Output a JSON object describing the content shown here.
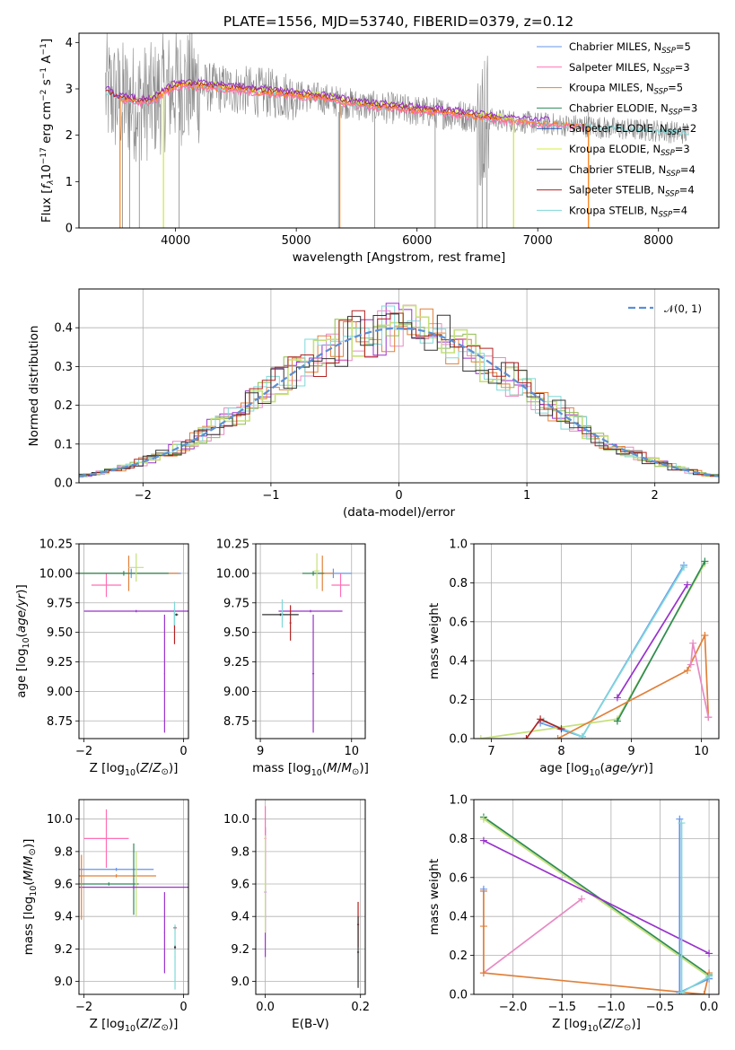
{
  "figure_title": "PLATE=1556, MJD=53740, FIBERID=0379, z=0.12",
  "colors": {
    "chabrier_miles": "#6495ed",
    "salpeter_miles": "#ff6eb4",
    "kroupa_miles": "#ff7f0e",
    "chabrier_elodie": "#2e8b57",
    "salpeter_elodie": "#1f4fb0",
    "kroupa_elodie": "#d4ef3c",
    "chabrier_stelib": "#333333",
    "salpeter_stelib": "#b22222",
    "kroupa_stelib": "#7fd8d8",
    "observed_spectrum": "#888888",
    "hist_purple": "#9932cc",
    "hist_pink": "#e78ac3",
    "hist_orange": "#e0803a",
    "hist_green": "#8fbc4f",
    "hist_lime": "#c5e07a",
    "gaussian": "#5b8fd6"
  },
  "chart_data": [
    {
      "id": "spectrum",
      "type": "line",
      "title": "PLATE=1556, MJD=53740, FIBERID=0379, z=0.12",
      "xlabel": "wavelength [Angstrom, rest frame]",
      "ylabel": "Flux [f_λ 10^-17 erg cm^-2 s^-1 A^-1]",
      "xlim": [
        3200,
        8500
      ],
      "ylim": [
        0,
        4.2
      ],
      "xticks": [
        "4000",
        "5000",
        "6000",
        "7000",
        "8000"
      ],
      "yticks": [
        "0",
        "1",
        "2",
        "3",
        "4"
      ],
      "grid": false,
      "legend_position": "right",
      "legend": [
        {
          "name": "Chabrier MILES",
          "nssp": "5",
          "color": "#6495ed"
        },
        {
          "name": "Salpeter MILES",
          "nssp": "3",
          "color": "#ff6eb4"
        },
        {
          "name": "Kroupa MILES",
          "nssp": "5",
          "color": "#ff7f0e"
        },
        {
          "name": "Chabrier ELODIE",
          "nssp": "3",
          "color": "#2e8b57"
        },
        {
          "name": "Salpeter ELODIE",
          "nssp": "2",
          "color": "#1f4fb0"
        },
        {
          "name": "Kroupa ELODIE",
          "nssp": "3",
          "color": "#d4ef3c"
        },
        {
          "name": "Chabrier STELIB",
          "nssp": "4",
          "color": "#333333"
        },
        {
          "name": "Salpeter STELIB",
          "nssp": "4",
          "color": "#b22222"
        },
        {
          "name": "Kroupa STELIB",
          "nssp": "4",
          "color": "#7fd8d8"
        }
      ],
      "continuum_x": [
        3420,
        3500,
        3600,
        3700,
        3800,
        3900,
        4000,
        4200,
        4400,
        4600,
        4800,
        5000,
        5200,
        5400,
        5600,
        5800,
        6000,
        6200,
        6400,
        6600,
        6800,
        7000,
        7200,
        7400,
        7600,
        7800,
        8000,
        8200
      ],
      "continuum_y": [
        2.95,
        2.8,
        2.75,
        2.7,
        2.72,
        2.9,
        3.05,
        3.05,
        3.0,
        2.95,
        2.9,
        2.85,
        2.8,
        2.7,
        2.62,
        2.58,
        2.52,
        2.48,
        2.42,
        2.35,
        2.3,
        2.26,
        2.22,
        2.2,
        2.15,
        2.12,
        2.1,
        2.05
      ]
    },
    {
      "id": "residuals",
      "type": "histogram",
      "xlabel": "(data-model)/error",
      "ylabel": "Normed distribution",
      "xlim": [
        -2.5,
        2.5
      ],
      "ylim": [
        0,
        0.5
      ],
      "xticks": [
        "−2",
        "−1",
        "0",
        "1",
        "2"
      ],
      "yticks": [
        "0.0",
        "0.1",
        "0.2",
        "0.3",
        "0.4"
      ],
      "grid": true,
      "legend_position": "upper right",
      "legend": "𝒩(0, 1)",
      "bin_width": 0.1
    },
    {
      "id": "age-vs-z",
      "type": "errorbar",
      "xlabel": "Z [log10(Z/Z⊙)]",
      "ylabel": "age [log10(age/yr)]",
      "xlim": [
        -2.1,
        0.1
      ],
      "ylim": [
        8.6,
        10.25
      ],
      "xticks": [
        "−2",
        "0"
      ],
      "yticks": [
        "8.75",
        "9.00",
        "9.25",
        "9.50",
        "9.75",
        "10.00",
        "10.25"
      ],
      "grid": true,
      "points": [
        {
          "x": -1.05,
          "xerr": 1.0,
          "y": 10.0,
          "yerr": 0.04,
          "color": "#6495ed"
        },
        {
          "x": -1.55,
          "xerr": 0.3,
          "y": 9.9,
          "yerr": 0.1,
          "color": "#ff6eb4"
        },
        {
          "x": -1.1,
          "xerr": 1.0,
          "y": 10.0,
          "yerr": 0.15,
          "color": "#e0803a"
        },
        {
          "x": -1.2,
          "xerr": 0.9,
          "y": 10.0,
          "yerr": 0.02,
          "color": "#2e8b57"
        },
        {
          "x": -0.95,
          "xerr": 0.15,
          "y": 10.05,
          "yerr": 0.12,
          "color": "#c5e07a"
        },
        {
          "x": -0.95,
          "xerr": 1.05,
          "y": 9.68,
          "yerr": 0.01,
          "color": "#9932cc"
        },
        {
          "x": -0.38,
          "xerr": 0.01,
          "y": 9.15,
          "yerr": 0.5,
          "color": "#9932cc"
        },
        {
          "x": -0.18,
          "xerr": 0.01,
          "y": 9.55,
          "yerr": 0.15,
          "color": "#b22222"
        },
        {
          "x": -0.14,
          "xerr": 0.03,
          "y": 9.65,
          "yerr": 0.01,
          "color": "#333333"
        },
        {
          "x": -0.18,
          "xerr": 0.01,
          "y": 9.66,
          "yerr": 0.1,
          "color": "#7fd8d8"
        }
      ]
    },
    {
      "id": "age-vs-mass",
      "type": "errorbar",
      "xlabel": "mass [log10(M/M⊙)]",
      "ylabel": "",
      "xlim": [
        8.95,
        10.15
      ],
      "ylim": [
        8.6,
        10.25
      ],
      "xticks": [
        "9",
        "10"
      ],
      "yticks": [
        "8.75",
        "9.00",
        "9.25",
        "9.50",
        "9.75",
        "10.00",
        "10.25"
      ],
      "grid": true,
      "points": [
        {
          "x": 9.8,
          "xerr": 0.2,
          "y": 10.0,
          "yerr": 0.04,
          "color": "#6495ed"
        },
        {
          "x": 9.88,
          "xerr": 0.1,
          "y": 9.9,
          "yerr": 0.1,
          "color": "#ff6eb4"
        },
        {
          "x": 9.68,
          "xerr": 0.12,
          "y": 10.0,
          "yerr": 0.15,
          "color": "#e0803a"
        },
        {
          "x": 9.58,
          "xerr": 0.12,
          "y": 10.0,
          "yerr": 0.02,
          "color": "#2e8b57"
        },
        {
          "x": 9.62,
          "xerr": 0.03,
          "y": 10.02,
          "yerr": 0.15,
          "color": "#c5e07a"
        },
        {
          "x": 9.55,
          "xerr": 0.35,
          "y": 9.68,
          "yerr": 0.01,
          "color": "#9932cc"
        },
        {
          "x": 9.58,
          "xerr": 0.01,
          "y": 9.15,
          "yerr": 0.5,
          "color": "#9932cc"
        },
        {
          "x": 9.33,
          "xerr": 0.01,
          "y": 9.58,
          "yerr": 0.15,
          "color": "#b22222"
        },
        {
          "x": 9.22,
          "xerr": 0.2,
          "y": 9.65,
          "yerr": 0.01,
          "color": "#333333"
        },
        {
          "x": 9.24,
          "xerr": 0.01,
          "y": 9.66,
          "yerr": 0.12,
          "color": "#7fd8d8"
        }
      ]
    },
    {
      "id": "weight-vs-age",
      "type": "line",
      "xlabel": "age [log10(age/yr)]",
      "ylabel": "mass weight",
      "xlim": [
        6.75,
        10.25
      ],
      "ylim": [
        0,
        1.0
      ],
      "xticks": [
        "7",
        "8",
        "9",
        "10"
      ],
      "yticks": [
        "0.0",
        "0.2",
        "0.4",
        "0.6",
        "0.8",
        "1.0"
      ],
      "grid": true,
      "series": [
        {
          "color": "#6495ed",
          "x": [
            7.7,
            8.3,
            9.75
          ],
          "y": [
            0.08,
            0.01,
            0.89
          ]
        },
        {
          "color": "#7fd8d8",
          "x": [
            7.75,
            8.3,
            9.75
          ],
          "y": [
            0.09,
            0.01,
            0.88
          ]
        },
        {
          "color": "#9932cc",
          "x": [
            8.8,
            9.8
          ],
          "y": [
            0.21,
            0.79
          ]
        },
        {
          "color": "#c5e07a",
          "x": [
            6.85,
            8.8,
            10.05
          ],
          "y": [
            0.0,
            0.1,
            0.9
          ]
        },
        {
          "color": "#2e8b57",
          "x": [
            8.8,
            10.05
          ],
          "y": [
            0.09,
            0.91
          ]
        },
        {
          "color": "#e0803a",
          "x": [
            7.95,
            9.8,
            10.05,
            10.1
          ],
          "y": [
            0.0,
            0.35,
            0.53,
            0.11
          ]
        },
        {
          "color": "#e78ac3",
          "x": [
            9.85,
            9.88,
            10.1
          ],
          "y": [
            0.38,
            0.49,
            0.11
          ]
        },
        {
          "color": "#b22222",
          "x": [
            7.5,
            7.7,
            8.0
          ],
          "y": [
            0.0,
            0.1,
            0.05
          ]
        }
      ]
    },
    {
      "id": "mass-vs-z",
      "type": "errorbar",
      "xlabel": "Z [log10(Z/Z⊙)]",
      "ylabel": "mass [log10(M/M⊙)]",
      "xlim": [
        -2.1,
        0.1
      ],
      "ylim": [
        8.92,
        10.12
      ],
      "xticks": [
        "−2",
        "0"
      ],
      "yticks": [
        "9.0",
        "9.2",
        "9.4",
        "9.6",
        "9.8",
        "10.0"
      ],
      "grid": true,
      "points": [
        {
          "x": -1.55,
          "xerr": 0.45,
          "y": 9.88,
          "yerr": 0.18,
          "color": "#ff6eb4"
        },
        {
          "x": -1.35,
          "xerr": 0.75,
          "y": 9.69,
          "yerr": 0.01,
          "color": "#6495ed"
        },
        {
          "x": -1.35,
          "xerr": 0.8,
          "y": 9.65,
          "yerr": 0.01,
          "color": "#e0803a"
        },
        {
          "x": -1.5,
          "xerr": 0.6,
          "y": 9.6,
          "yerr": 0.01,
          "color": "#2e8b57"
        },
        {
          "x": -1.0,
          "xerr": 0.01,
          "y": 9.63,
          "yerr": 0.22,
          "color": "#2e8b57"
        },
        {
          "x": -0.95,
          "xerr": 0.01,
          "y": 9.6,
          "yerr": 0.2,
          "color": "#c5e07a"
        },
        {
          "x": -1.0,
          "xerr": 1.1,
          "y": 9.58,
          "yerr": 0.01,
          "color": "#9932cc"
        },
        {
          "x": -0.38,
          "xerr": 0.01,
          "y": 9.3,
          "yerr": 0.25,
          "color": "#9932cc"
        },
        {
          "x": -2.05,
          "xerr": 0.01,
          "y": 9.58,
          "yerr": 0.2,
          "color": "#e0803a"
        },
        {
          "x": -0.17,
          "xerr": 0.03,
          "y": 9.33,
          "yerr": 0.01,
          "color": "#b22222"
        },
        {
          "x": -0.17,
          "xerr": 0.01,
          "y": 9.15,
          "yerr": 0.2,
          "color": "#7fd8d8"
        },
        {
          "x": -0.17,
          "xerr": 0.02,
          "y": 9.21,
          "yerr": 0.01,
          "color": "#333333"
        }
      ]
    },
    {
      "id": "mass-vs-ebv",
      "type": "errorbar",
      "xlabel": "E(B-V)",
      "ylabel": "",
      "xlim": [
        -0.02,
        0.21
      ],
      "ylim": [
        8.92,
        10.12
      ],
      "xticks": [
        "0.0",
        "0.2"
      ],
      "yticks": [
        "9.0",
        "9.2",
        "9.4",
        "9.6",
        "9.8",
        "10.0"
      ],
      "grid": true,
      "points": [
        {
          "x": 0.0,
          "xerr": 0.002,
          "y": 9.55,
          "yerr": 0.4,
          "color": "#9932cc"
        },
        {
          "x": 0.0,
          "xerr": 0.002,
          "y": 9.88,
          "yerr": 0.2,
          "color": "#ff6eb4"
        },
        {
          "x": 0.0,
          "xerr": 0.002,
          "y": 9.6,
          "yerr": 0.3,
          "color": "#c5e07a"
        },
        {
          "x": 0.195,
          "xerr": 0.002,
          "y": 9.35,
          "yerr": 0.14,
          "color": "#b22222"
        },
        {
          "x": 0.195,
          "xerr": 0.002,
          "y": 9.18,
          "yerr": 0.22,
          "color": "#333333"
        }
      ]
    },
    {
      "id": "weight-vs-z",
      "type": "line",
      "xlabel": "Z [log10(Z/Z⊙)]",
      "ylabel": "mass weight",
      "xlim": [
        -2.4,
        0.1
      ],
      "ylim": [
        0,
        1.0
      ],
      "xticks": [
        "−2.0",
        "−1.5",
        "−1.0",
        "−0.5",
        "0.0"
      ],
      "yticks": [
        "0.0",
        "0.2",
        "0.4",
        "0.6",
        "0.8",
        "1.0"
      ],
      "grid": true,
      "series": [
        {
          "color": "#2e8b57",
          "x": [
            -2.3,
            0.0
          ],
          "y": [
            0.91,
            0.1
          ]
        },
        {
          "color": "#c5e07a",
          "x": [
            -2.3,
            0.0
          ],
          "y": [
            0.9,
            0.09
          ]
        },
        {
          "color": "#9932cc",
          "x": [
            -2.3,
            0.0
          ],
          "y": [
            0.79,
            0.21
          ]
        },
        {
          "color": "#e78ac3",
          "x": [
            -2.3,
            -1.3
          ],
          "y": [
            0.11,
            0.49
          ]
        },
        {
          "color": "#e0803a",
          "x": [
            -2.3,
            -2.3,
            -2.3,
            -0.05,
            0.0
          ],
          "y": [
            0.53,
            0.35,
            0.11,
            0.0,
            0.11
          ]
        },
        {
          "color": "#6495ed",
          "x": [
            -0.3,
            -0.3,
            0.0
          ],
          "y": [
            0.9,
            0.01,
            0.08
          ]
        },
        {
          "color": "#7fd8d8",
          "x": [
            -0.28,
            -0.28,
            0.0
          ],
          "y": [
            0.88,
            0.01,
            0.09
          ]
        },
        {
          "color": "#6495ed",
          "x": [
            -2.3
          ],
          "y": [
            0.54
          ]
        }
      ]
    }
  ]
}
